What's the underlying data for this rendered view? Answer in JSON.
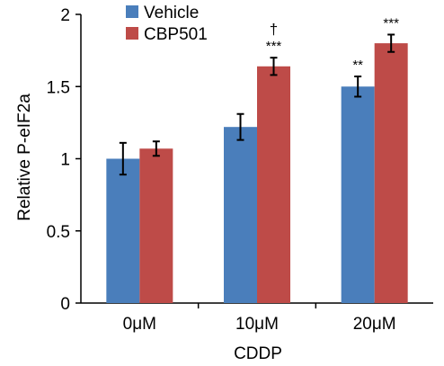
{
  "chart_data": {
    "type": "bar",
    "title": "",
    "xlabel": "CDDP",
    "ylabel": "Relative P-eIF2a",
    "categories": [
      "0μM",
      "10μM",
      "20μM"
    ],
    "ylim": [
      0,
      2
    ],
    "yticks": [
      "0",
      "0.5",
      "1",
      "1.5",
      "2"
    ],
    "grid": false,
    "legend_position": "top-left",
    "series": [
      {
        "name": "Vehicle",
        "color": "#4a7ebb",
        "values": [
          1.0,
          1.22,
          1.5
        ],
        "errors": [
          0.11,
          0.09,
          0.07
        ],
        "annotations": [
          "",
          "",
          "**"
        ]
      },
      {
        "name": "CBP501",
        "color": "#be4b48",
        "values": [
          1.07,
          1.64,
          1.8
        ],
        "errors": [
          0.05,
          0.06,
          0.06
        ],
        "annotations": [
          "",
          "***",
          "***"
        ]
      }
    ],
    "extra_annotations": [
      {
        "series": 1,
        "category": 1,
        "text": "†"
      }
    ]
  }
}
